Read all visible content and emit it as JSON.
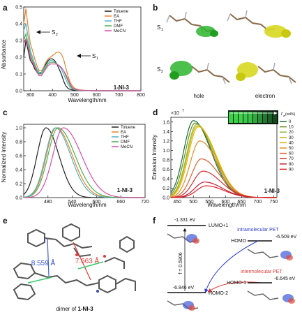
{
  "panels": {
    "a": {
      "label": "a",
      "xlabel": "Wavelength/nm",
      "ylabel": "Absorbance",
      "compound": "1-NI-3",
      "annotations": [
        "S",
        "2",
        "S",
        "1"
      ],
      "xticks": [
        "300",
        "400",
        "500",
        "600",
        "700",
        "800"
      ],
      "yticks": [
        "0.0",
        "0.1",
        "0.2",
        "0.3",
        "0.4",
        "0.5"
      ],
      "legend": [
        "Toluene",
        "EA",
        "THF",
        "DMF",
        "MeCN"
      ]
    },
    "b": {
      "label": "b",
      "row_labels": [
        "S",
        "1",
        "S",
        "2"
      ],
      "col_labels": [
        "hole",
        "electron"
      ]
    },
    "c": {
      "label": "c",
      "xlabel": "Wavelength/nm",
      "ylabel": "Normalized Intensity",
      "compound": "1-NI-3",
      "xticks": [
        "480",
        "540",
        "600",
        "660",
        "720"
      ],
      "yticks": [
        "0.0",
        "0.2",
        "0.4",
        "0.6",
        "0.8",
        "1.0"
      ],
      "legend": [
        "Toluene",
        "EA",
        "THF",
        "DMF",
        "MeCN"
      ]
    },
    "d": {
      "label": "d",
      "xlabel": "Wavelength/nm",
      "ylabel": "Emission Intensity",
      "compound": "1-NI-3",
      "multiplier": "×10",
      "multiplier_exp": "7",
      "legend_title": "f",
      "legend_title_sub": "w",
      "legend_title_rest": " (vol%)",
      "legend": [
        "0",
        "10",
        "20",
        "30",
        "40",
        "50",
        "60",
        "70",
        "80",
        "90"
      ],
      "xticks": [
        "450",
        "500",
        "550",
        "600",
        "650",
        "700",
        "750"
      ],
      "yticks": [
        "0.0",
        "0.2",
        "0.4",
        "0.6",
        "0.8",
        "1.0",
        "1.2",
        "1.4",
        "1.6"
      ]
    },
    "e": {
      "label": "e",
      "dist1": "8.559 Å",
      "dist2": "7.663 Å",
      "caption_pre": "dimer of ",
      "caption_bold": "1-NI-3"
    },
    "f": {
      "label": "f",
      "e_lumo1": "-1.331 eV",
      "lumo1": "LUMO+1",
      "homo": "HOMO",
      "e_homo": "-6.509 eV",
      "intra": "intramolecular PET",
      "inter": "intermolecular PET",
      "homo1": "HOMO-1",
      "e_homo1": "-6.645 eV",
      "e_homo2": "-6.846 eV",
      "homo2": "HOMO-2",
      "f_label": "f = 0.5906"
    }
  },
  "colors": {
    "toluene": "#222222",
    "ea": "#e8822a",
    "thf": "#4fb3c8",
    "dmf": "#4caf50",
    "mecn": "#d94fa8"
  },
  "chart_data": [
    {
      "panel": "a",
      "type": "line",
      "xlabel": "Wavelength/nm",
      "ylabel": "Absorbance",
      "xlim": [
        270,
        800
      ],
      "ylim": [
        0.0,
        0.5
      ],
      "x": [
        270,
        280,
        290,
        300,
        310,
        320,
        330,
        340,
        350,
        360,
        370,
        380,
        390,
        400,
        410,
        420,
        430,
        440,
        450,
        460,
        470,
        480,
        490,
        500,
        520,
        550,
        600,
        700,
        800
      ],
      "series": [
        {
          "name": "Toluene",
          "values": [
            0.2,
            0.3,
            0.24,
            0.18,
            0.16,
            0.13,
            0.11,
            0.1,
            0.11,
            0.13,
            0.16,
            0.18,
            0.19,
            0.19,
            0.18,
            0.16,
            0.13,
            0.1,
            0.06,
            0.03,
            0.015,
            0.008,
            0.005,
            0.003,
            0.002,
            0.001,
            0.0,
            0.0,
            0.0
          ]
        },
        {
          "name": "EA",
          "values": [
            0.4,
            0.49,
            0.38,
            0.28,
            0.24,
            0.19,
            0.15,
            0.12,
            0.12,
            0.14,
            0.17,
            0.19,
            0.2,
            0.21,
            0.22,
            0.23,
            0.23,
            0.22,
            0.19,
            0.14,
            0.09,
            0.05,
            0.03,
            0.015,
            0.006,
            0.002,
            0.0,
            0.0,
            0.0
          ]
        },
        {
          "name": "THF",
          "values": [
            0.36,
            0.4,
            0.32,
            0.24,
            0.2,
            0.16,
            0.13,
            0.11,
            0.11,
            0.13,
            0.15,
            0.17,
            0.18,
            0.18,
            0.17,
            0.16,
            0.15,
            0.13,
            0.1,
            0.07,
            0.04,
            0.02,
            0.01,
            0.006,
            0.002,
            0.001,
            0.0,
            0.0,
            0.0
          ]
        },
        {
          "name": "DMF",
          "values": [
            0.3,
            0.34,
            0.28,
            0.22,
            0.18,
            0.15,
            0.12,
            0.1,
            0.1,
            0.12,
            0.14,
            0.16,
            0.17,
            0.17,
            0.17,
            0.16,
            0.15,
            0.14,
            0.12,
            0.09,
            0.06,
            0.03,
            0.015,
            0.008,
            0.003,
            0.001,
            0.0,
            0.0,
            0.0
          ]
        },
        {
          "name": "MeCN",
          "values": [
            0.28,
            0.31,
            0.26,
            0.2,
            0.17,
            0.14,
            0.11,
            0.09,
            0.09,
            0.11,
            0.13,
            0.15,
            0.16,
            0.16,
            0.16,
            0.16,
            0.15,
            0.14,
            0.12,
            0.1,
            0.07,
            0.04,
            0.02,
            0.01,
            0.004,
            0.001,
            0.0,
            0.0,
            0.0
          ]
        }
      ]
    },
    {
      "panel": "c",
      "type": "line",
      "xlabel": "Wavelength/nm",
      "ylabel": "Normalized Intensity",
      "xlim": [
        420,
        720
      ],
      "ylim": [
        0.0,
        1.05
      ],
      "series": [
        {
          "name": "Toluene",
          "peak": 475,
          "sigma_left": 22,
          "sigma_right": 32
        },
        {
          "name": "EA",
          "peak": 500,
          "sigma_left": 24,
          "sigma_right": 40
        },
        {
          "name": "THF",
          "peak": 498,
          "sigma_left": 24,
          "sigma_right": 38
        },
        {
          "name": "DMF",
          "peak": 505,
          "sigma_left": 25,
          "sigma_right": 42
        },
        {
          "name": "MeCN",
          "peak": 518,
          "sigma_left": 26,
          "sigma_right": 45
        }
      ]
    },
    {
      "panel": "d",
      "type": "line",
      "xlabel": "Wavelength/nm",
      "ylabel": "Emission Intensity",
      "xlim": [
        430,
        760
      ],
      "ylim": [
        0.0,
        1.7
      ],
      "series": [
        {
          "name": "0",
          "peak": 500,
          "height": 1.63
        },
        {
          "name": "10",
          "peak": 505,
          "height": 1.58
        },
        {
          "name": "20",
          "peak": 510,
          "height": 1.55
        },
        {
          "name": "30",
          "peak": 512,
          "height": 1.52
        },
        {
          "name": "40",
          "peak": 515,
          "height": 1.5
        },
        {
          "name": "50",
          "peak": 520,
          "height": 1.2
        },
        {
          "name": "60",
          "peak": 525,
          "height": 0.82
        },
        {
          "name": "70",
          "peak": 530,
          "height": 0.56
        },
        {
          "name": "80",
          "peak": 535,
          "height": 0.33
        },
        {
          "name": "90",
          "peak": 540,
          "height": 0.25
        }
      ],
      "series_colors": [
        "#1a6b3a",
        "#6b8e23",
        "#8fbc3f",
        "#c8b400",
        "#e8b400",
        "#e88a2a",
        "#e06030",
        "#d03030",
        "#c0203a",
        "#e0202a"
      ]
    }
  ]
}
